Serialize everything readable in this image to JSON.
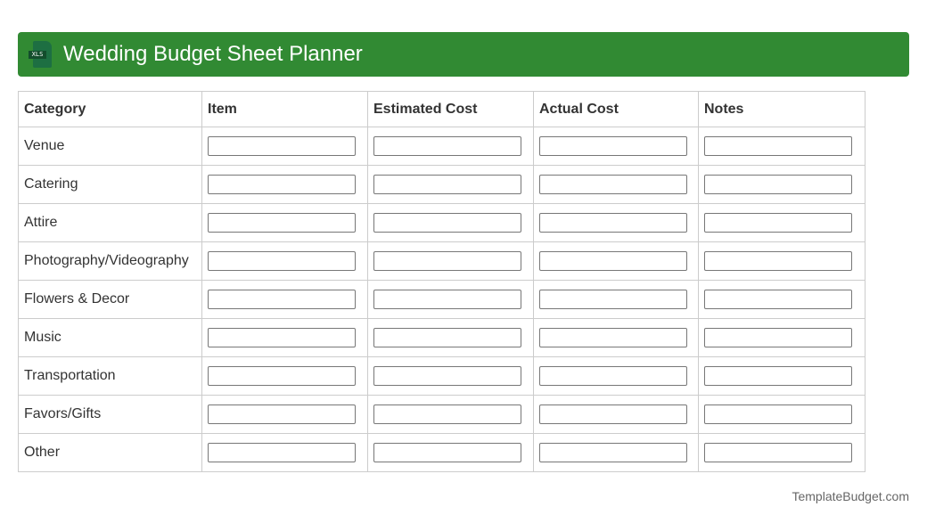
{
  "header": {
    "title": "Wedding Budget Sheet Planner",
    "icon": "xls-file-icon",
    "icon_label": "XLS",
    "color": "#318a33"
  },
  "table": {
    "columns": [
      "Category",
      "Item",
      "Estimated Cost",
      "Actual Cost",
      "Notes"
    ],
    "rows": [
      "Venue",
      "Catering",
      "Attire",
      "Photography/Videography",
      "Flowers & Decor",
      "Music",
      "Transportation",
      "Favors/Gifts",
      "Other"
    ]
  },
  "footer": {
    "brand": "TemplateBudget.com"
  },
  "colors": {
    "accent": "#318a33",
    "border": "#cccccc"
  }
}
